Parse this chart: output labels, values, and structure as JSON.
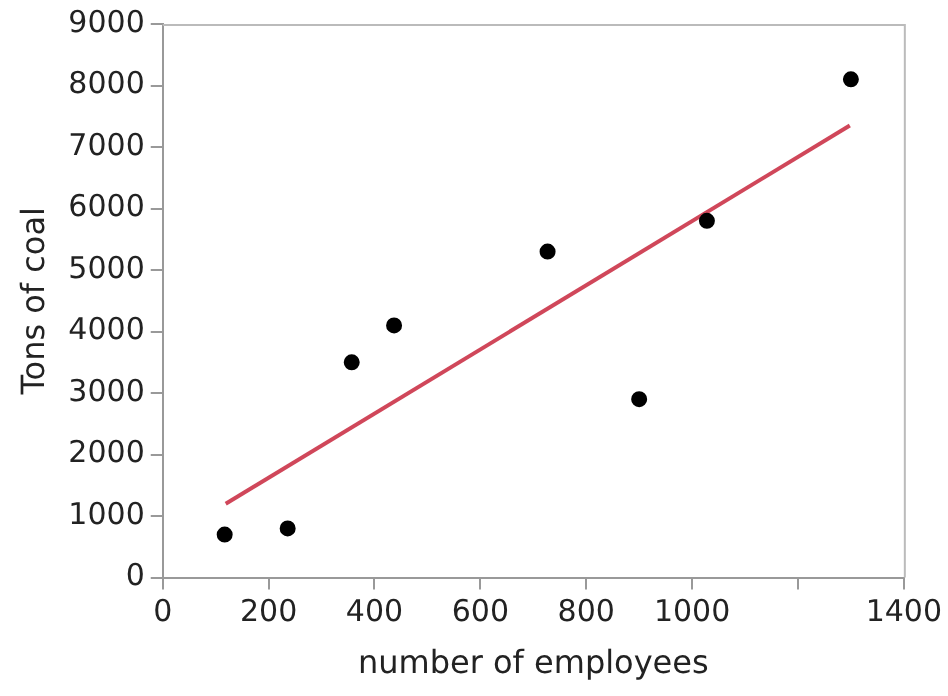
{
  "chart_data": {
    "type": "scatter",
    "xlabel": "number of employees",
    "ylabel": "Tons of coal",
    "xlim": [
      0,
      1400
    ],
    "xticks": [
      0,
      200,
      400,
      600,
      800,
      1000,
      {
        "value": 1200,
        "label": null
      },
      1400
    ],
    "ylim": [
      0,
      9000
    ],
    "yticks": [
      0,
      1000,
      2000,
      3000,
      4000,
      5000,
      6000,
      7000,
      8000,
      9000
    ],
    "grid": false,
    "legend": false,
    "marker": "circle",
    "series": [
      {
        "color": "#000000",
        "x": [
          117,
          236,
          357,
          437,
          727,
          900,
          1028,
          1300
        ],
        "values": [
          700,
          800,
          3500,
          4100,
          5300,
          2900,
          5800,
          8100
        ]
      },
      {
        "type": "line",
        "color": "#d0475a",
        "x": [
          119,
          1298
        ],
        "values": [
          1200,
          7350
        ],
        "marker": "none"
      }
    ]
  }
}
